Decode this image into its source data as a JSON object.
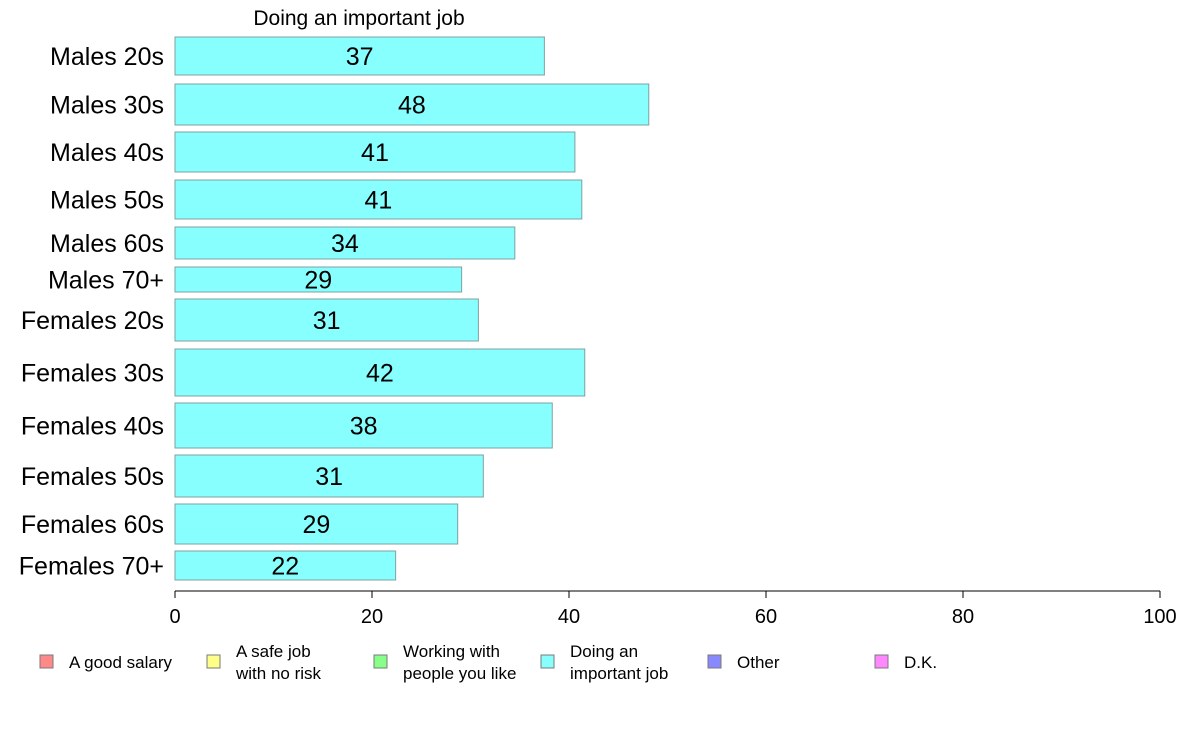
{
  "chart_data": {
    "type": "bar",
    "orientation": "horizontal",
    "title": "Doing an important job",
    "categories": [
      "Males 20s",
      "Males 30s",
      "Males 40s",
      "Males 50s",
      "Males 60s",
      "Males 70+",
      "Females 20s",
      "Females 30s",
      "Females 40s",
      "Females 50s",
      "Females 60s",
      "Females 70+"
    ],
    "values": [
      37.5,
      48.1,
      40.6,
      41.3,
      34.5,
      29.1,
      30.8,
      41.6,
      38.3,
      31.3,
      28.7,
      22.4
    ],
    "value_labels": [
      "37",
      "48",
      "41",
      "41",
      "34",
      "29",
      "31",
      "42",
      "38",
      "31",
      "29",
      "22"
    ],
    "series_color": "#88ffff",
    "bar_border_color": "#7fa0a0",
    "xlim": [
      0,
      100
    ],
    "xticks": [
      0,
      20,
      40,
      60,
      80,
      100
    ],
    "xtick_labels": [
      "0",
      "20",
      "40",
      "60",
      "80",
      "100"
    ],
    "grid": false,
    "legend_position": "bottom",
    "legend": [
      {
        "lines": [
          "A good salary"
        ],
        "color": "#ff8888"
      },
      {
        "lines": [
          "A safe job",
          "with no risk"
        ],
        "color": "#ffff88"
      },
      {
        "lines": [
          "Working with",
          "people you like"
        ],
        "color": "#88ff88"
      },
      {
        "lines": [
          "Doing an",
          "important job"
        ],
        "color": "#88ffff"
      },
      {
        "lines": [
          "Other"
        ],
        "color": "#8888ff"
      },
      {
        "lines": [
          "D.K."
        ],
        "color": "#ff88ff"
      }
    ]
  }
}
